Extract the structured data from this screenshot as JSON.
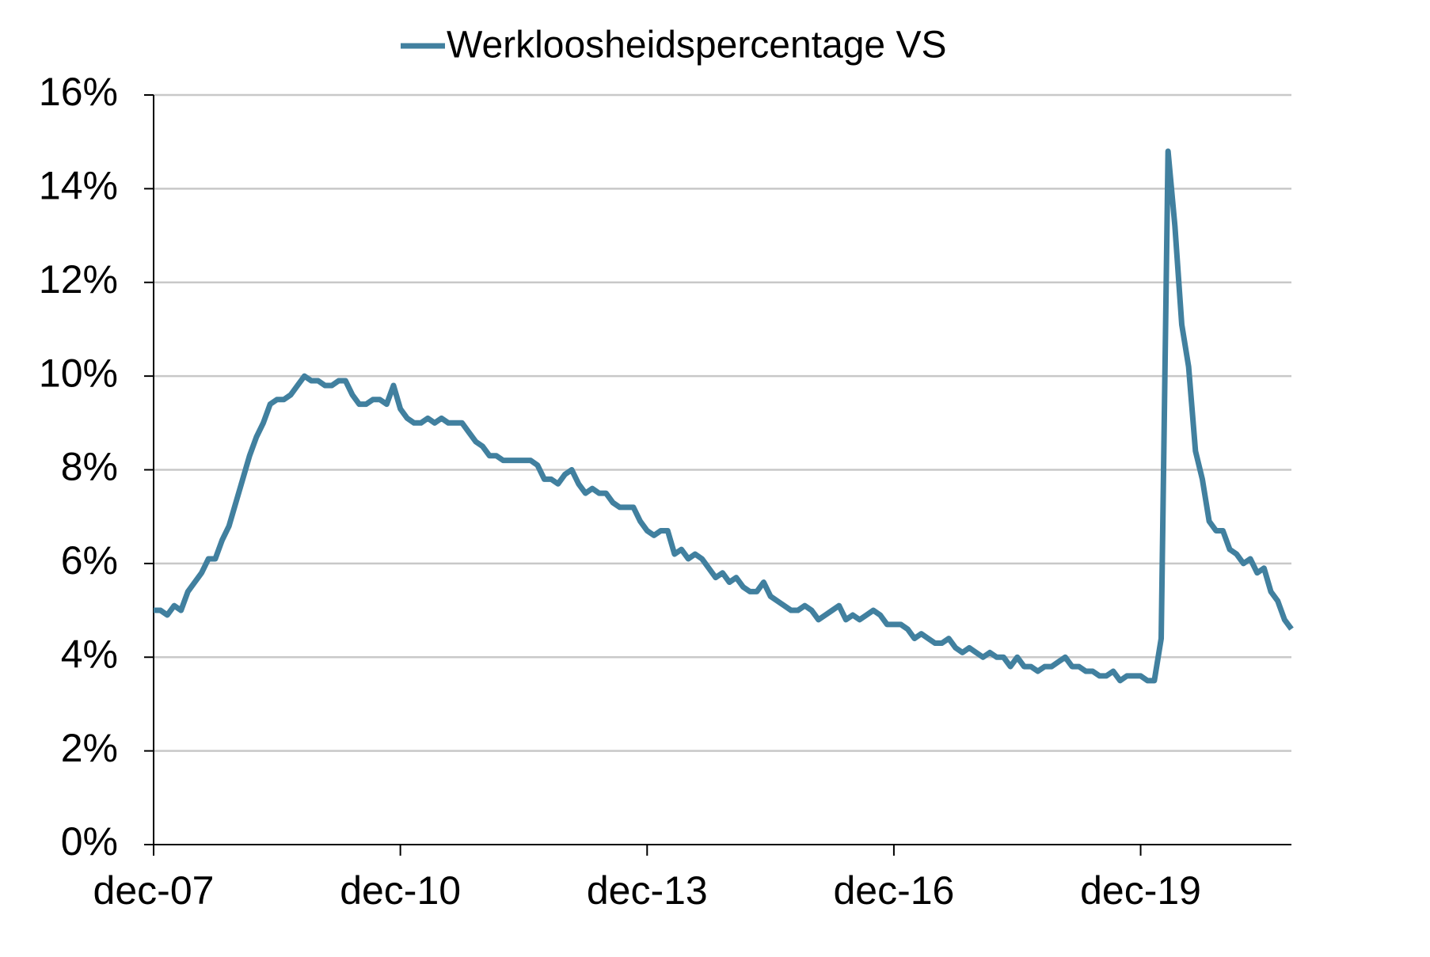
{
  "chart_data": {
    "type": "line",
    "categories": [
      "dec-07",
      null,
      null,
      null,
      null,
      null,
      null,
      null,
      null,
      null,
      null,
      null,
      null,
      null,
      null,
      null,
      null,
      null,
      null,
      null,
      null,
      null,
      null,
      null,
      null,
      null,
      null,
      null,
      null,
      null,
      null,
      null,
      null,
      null,
      null,
      null,
      "dec-10",
      null,
      null,
      null,
      null,
      null,
      null,
      null,
      null,
      null,
      null,
      null,
      null,
      null,
      null,
      null,
      null,
      null,
      null,
      null,
      null,
      null,
      null,
      null,
      null,
      null,
      null,
      null,
      null,
      null,
      null,
      null,
      null,
      null,
      null,
      null,
      "dec-13",
      null,
      null,
      null,
      null,
      null,
      null,
      null,
      null,
      null,
      null,
      null,
      null,
      null,
      null,
      null,
      null,
      null,
      null,
      null,
      null,
      null,
      null,
      null,
      null,
      null,
      null,
      null,
      null,
      null,
      null,
      null,
      null,
      null,
      null,
      null,
      "dec-16",
      null,
      null,
      null,
      null,
      null,
      null,
      null,
      null,
      null,
      null,
      null,
      null,
      null,
      null,
      null,
      null,
      null,
      null,
      null,
      null,
      null,
      null,
      null,
      null,
      null,
      null,
      null,
      null,
      null,
      null,
      null,
      null,
      null,
      null,
      null,
      "dec-19",
      null,
      null,
      null,
      null,
      null,
      null,
      null,
      null,
      null,
      null,
      null,
      null,
      null,
      null,
      null,
      null,
      null,
      null,
      null,
      null,
      null,
      null
    ],
    "series": [
      {
        "name": "Werkloosheidspercentage VS",
        "color": "#41809f",
        "values": [
          5.0,
          5.0,
          4.9,
          5.1,
          5.0,
          5.4,
          5.6,
          5.8,
          6.1,
          6.1,
          6.5,
          6.8,
          7.3,
          7.8,
          8.3,
          8.7,
          9.0,
          9.4,
          9.5,
          9.5,
          9.6,
          9.8,
          10.0,
          9.9,
          9.9,
          9.8,
          9.8,
          9.9,
          9.9,
          9.6,
          9.4,
          9.4,
          9.5,
          9.5,
          9.4,
          9.8,
          9.3,
          9.1,
          9.0,
          9.0,
          9.1,
          9.0,
          9.1,
          9.0,
          9.0,
          9.0,
          8.8,
          8.6,
          8.5,
          8.3,
          8.3,
          8.2,
          8.2,
          8.2,
          8.2,
          8.2,
          8.1,
          7.8,
          7.8,
          7.7,
          7.9,
          8.0,
          7.7,
          7.5,
          7.6,
          7.5,
          7.5,
          7.3,
          7.2,
          7.2,
          7.2,
          6.9,
          6.7,
          6.6,
          6.7,
          6.7,
          6.2,
          6.3,
          6.1,
          6.2,
          6.1,
          5.9,
          5.7,
          5.8,
          5.6,
          5.7,
          5.5,
          5.4,
          5.4,
          5.6,
          5.3,
          5.2,
          5.1,
          5.0,
          5.0,
          5.1,
          5.0,
          4.8,
          4.9,
          5.0,
          5.1,
          4.8,
          4.9,
          4.8,
          4.9,
          5.0,
          4.9,
          4.7,
          4.7,
          4.7,
          4.6,
          4.4,
          4.5,
          4.4,
          4.3,
          4.3,
          4.4,
          4.2,
          4.1,
          4.2,
          4.1,
          4.0,
          4.1,
          4.0,
          4.0,
          3.8,
          4.0,
          3.8,
          3.8,
          3.7,
          3.8,
          3.8,
          3.9,
          4.0,
          3.8,
          3.8,
          3.7,
          3.7,
          3.6,
          3.6,
          3.7,
          3.5,
          3.6,
          3.6,
          3.6,
          3.5,
          3.5,
          4.4,
          14.8,
          13.2,
          11.1,
          10.2,
          8.4,
          7.8,
          6.9,
          6.7,
          6.7,
          6.3,
          6.2,
          6.0,
          6.1,
          5.8,
          5.9,
          5.4,
          5.2,
          4.8,
          4.6
        ]
      }
    ],
    "ylim": [
      0,
      16
    ],
    "yticks": [
      {
        "value": 0,
        "label": "0%"
      },
      {
        "value": 2,
        "label": "2%"
      },
      {
        "value": 4,
        "label": "4%"
      },
      {
        "value": 6,
        "label": "6%"
      },
      {
        "value": 8,
        "label": "8%"
      },
      {
        "value": 10,
        "label": "10%"
      },
      {
        "value": 12,
        "label": "12%"
      },
      {
        "value": 14,
        "label": "14%"
      },
      {
        "value": 16,
        "label": "16%"
      }
    ],
    "grid": true,
    "legend": "top"
  }
}
